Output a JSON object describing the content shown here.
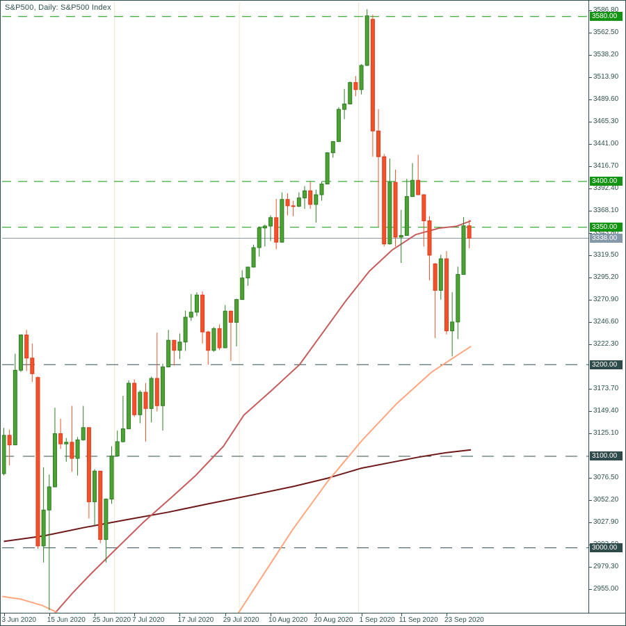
{
  "window": {
    "title": "S&P500, Daily: S&P500 Index"
  },
  "colors": {
    "text": "#2f4f4f",
    "up_fill": "#4ea234",
    "up_edge": "#2e7d24",
    "down_fill": "#f2512a",
    "down_edge": "#dd3d1d",
    "green_line": "#0a970a",
    "dark_line": "#2f4f4f",
    "bid_line": "#8699ab",
    "bid_label_bg": "#8699ab",
    "green_label_bg": "#129412",
    "dark_label_bg": "#2e4a4a",
    "ma_dark_red": "#6f1818",
    "ma_rose": "#c45c5c",
    "ma_salmon": "#ffa67e",
    "month_separator": "#f0e4cc"
  },
  "price_axis": {
    "ticks": [
      3586.8,
      3562.5,
      3538.2,
      3513.9,
      3489.6,
      3465.3,
      3441.0,
      3416.7,
      3392.4,
      3368.1,
      3343.8,
      3319.5,
      3295.2,
      3270.9,
      3246.6,
      3222.3,
      3173.7,
      3149.4,
      3125.1,
      3076.5,
      3052.2,
      3027.9,
      3003.6,
      2979.3,
      2955.0
    ]
  },
  "time_axis": {
    "labels": [
      {
        "text": "3 Jun 2020",
        "i": 0
      },
      {
        "text": "15 Jun 2020",
        "i": 8
      },
      {
        "text": "25 Jun 2020",
        "i": 16
      },
      {
        "text": "7 Jul 2020",
        "i": 23
      },
      {
        "text": "17 Jul 2020",
        "i": 31
      },
      {
        "text": "29 Jul 2020",
        "i": 39
      },
      {
        "text": "10 Aug 2020",
        "i": 47
      },
      {
        "text": "20 Aug 2020",
        "i": 55
      },
      {
        "text": "1 Sep 2020",
        "i": 63
      },
      {
        "text": "11 Sep 2020",
        "i": 70
      },
      {
        "text": "23 Sep 2020",
        "i": 78
      }
    ]
  },
  "chart_data": {
    "type": "candlestick",
    "title": "S&P500, Daily: S&P500 Index",
    "symbol": "S&P500",
    "timeframe": "Daily",
    "current_bid": 3338.0,
    "y_axis_range": [
      2922,
      3591
    ],
    "x_range_dates": [
      "3 Jun 2020",
      "29 Sep 2020"
    ],
    "grid": "off",
    "levels": [
      {
        "price": 3580,
        "label": "3580.00",
        "style": "green-dash"
      },
      {
        "price": 3400,
        "label": "3400.00",
        "style": "green-dash"
      },
      {
        "price": 3350,
        "label": "3350.00",
        "style": "green-dash"
      },
      {
        "price": 3338,
        "label": "3338.00",
        "style": "bid"
      },
      {
        "price": 3200,
        "label": "3200.00",
        "style": "dark-dash"
      },
      {
        "price": 3100,
        "label": "3100.00",
        "style": "dark-dash"
      },
      {
        "price": 3000,
        "label": "3000.00",
        "style": "dark-dash"
      }
    ],
    "month_separators_i": [
      19.5,
      41.5,
      62.5
    ],
    "candles_ohlc": [
      [
        3081.0,
        3131,
        3079,
        3122.9
      ],
      [
        3122.9,
        3129,
        3090,
        3112.4
      ],
      [
        3112.4,
        3212,
        3112,
        3193.9
      ],
      [
        3193.9,
        3233,
        3192,
        3232.4
      ],
      [
        3232.4,
        3238,
        3193,
        3207.2
      ],
      [
        3207.2,
        3223,
        3181,
        3190.1
      ],
      [
        3186.0,
        3187,
        2999,
        3002.1
      ],
      [
        3002.1,
        3088,
        2984,
        3041.3
      ],
      [
        3041.3,
        3080,
        2932,
        3066.6
      ],
      [
        3066.6,
        3153,
        3066,
        3124.7
      ],
      [
        3124.7,
        3141,
        3108,
        3113.5
      ],
      [
        3113.5,
        3120,
        3094,
        3115.3
      ],
      [
        3115.3,
        3155,
        3083,
        3097.7
      ],
      [
        3097.7,
        3121,
        3079,
        3117.9
      ],
      [
        3117.9,
        3155,
        3117,
        3131.3
      ],
      [
        3131.3,
        3132,
        3032,
        3050.3
      ],
      [
        3050.3,
        3086,
        3024,
        3083.8
      ],
      [
        3083.8,
        3084,
        3005,
        3009.1
      ],
      [
        3009.1,
        3054,
        2984,
        3053.2
      ],
      [
        3053.2,
        3111,
        3048,
        3100.3
      ],
      [
        3100.3,
        3128,
        3100,
        3115.9
      ],
      [
        3115.9,
        3166,
        3115,
        3130.0
      ],
      [
        3130.0,
        3183,
        3130,
        3179.7
      ],
      [
        3179.7,
        3184,
        3143,
        3145.3
      ],
      [
        3145.3,
        3172,
        3136,
        3169.9
      ],
      [
        3169.9,
        3180,
        3116,
        3152.1
      ],
      [
        3152.1,
        3187,
        3137,
        3185.0
      ],
      [
        3185.0,
        3235,
        3149,
        3155.2
      ],
      [
        3155.2,
        3201,
        3128,
        3197.5
      ],
      [
        3197.5,
        3238,
        3197,
        3226.6
      ],
      [
        3226.6,
        3227,
        3199,
        3215.6
      ],
      [
        3215.6,
        3234,
        3206,
        3224.7
      ],
      [
        3224.7,
        3259,
        3215,
        3251.8
      ],
      [
        3251.8,
        3277,
        3248,
        3257.3
      ],
      [
        3257.3,
        3279,
        3253,
        3276.0
      ],
      [
        3276.0,
        3280,
        3223,
        3235.7
      ],
      [
        3235.7,
        3237,
        3200,
        3215.6
      ],
      [
        3215.6,
        3241,
        3214,
        3239.4
      ],
      [
        3239.4,
        3244,
        3216,
        3218.4
      ],
      [
        3218.4,
        3265,
        3218,
        3258.4
      ],
      [
        3258.4,
        3259,
        3204,
        3246.2
      ],
      [
        3246.2,
        3272,
        3220,
        3271.1
      ],
      [
        3271.1,
        3303,
        3271,
        3294.6
      ],
      [
        3294.6,
        3307,
        3286,
        3306.5
      ],
      [
        3306.5,
        3331,
        3306,
        3327.8
      ],
      [
        3327.8,
        3351,
        3318,
        3349.2
      ],
      [
        3349.2,
        3353,
        3329,
        3351.3
      ],
      [
        3351.3,
        3363,
        3335,
        3360.5
      ],
      [
        3360.5,
        3381,
        3326,
        3333.7
      ],
      [
        3333.7,
        3388,
        3333,
        3380.4
      ],
      [
        3380.4,
        3387,
        3363,
        3373.4
      ],
      [
        3373.4,
        3379,
        3362,
        3372.9
      ],
      [
        3372.9,
        3388,
        3372,
        3382.0
      ],
      [
        3382.0,
        3395,
        3370,
        3389.8
      ],
      [
        3389.8,
        3400,
        3370,
        3374.9
      ],
      [
        3374.9,
        3391,
        3355,
        3385.5
      ],
      [
        3385.5,
        3400,
        3379,
        3397.2
      ],
      [
        3397.2,
        3432,
        3397,
        3431.3
      ],
      [
        3431.3,
        3444,
        3426,
        3443.6
      ],
      [
        3443.6,
        3481,
        3443,
        3478.7
      ],
      [
        3478.7,
        3501,
        3468,
        3484.6
      ],
      [
        3484.6,
        3509,
        3484,
        3508.0
      ],
      [
        3508.0,
        3515,
        3493,
        3500.3
      ],
      [
        3500.3,
        3528,
        3495,
        3526.7
      ],
      [
        3526.7,
        3588,
        3526,
        3580.8
      ],
      [
        3577.0,
        3582,
        3427,
        3455.1
      ],
      [
        3455.1,
        3479,
        3350,
        3427.0
      ],
      [
        3427.0,
        3430,
        3329,
        3331.8
      ],
      [
        3331.8,
        3425,
        3331,
        3399.0
      ],
      [
        3399.0,
        3413,
        3329,
        3339.2
      ],
      [
        3339.2,
        3369,
        3311,
        3341.0
      ],
      [
        3341.0,
        3403,
        3341,
        3383.5
      ],
      [
        3383.5,
        3420,
        3383,
        3401.2
      ],
      [
        3401.2,
        3429,
        3385,
        3385.5
      ],
      [
        3385.5,
        3386,
        3329,
        3357.0
      ],
      [
        3357.0,
        3362,
        3292,
        3319.5
      ],
      [
        3310.0,
        3311,
        3229,
        3281.1
      ],
      [
        3281.1,
        3320,
        3271,
        3315.6
      ],
      [
        3315.6,
        3324,
        3233,
        3236.9
      ],
      [
        3236.9,
        3279,
        3209,
        3246.6
      ],
      [
        3246.6,
        3307,
        3228,
        3298.5
      ],
      [
        3298.5,
        3361,
        3298,
        3351.6
      ],
      [
        3351.6,
        3358,
        3327,
        3338.0
      ]
    ],
    "series": [
      {
        "name": "ma-dark-red",
        "points": [
          [
            0,
            3007
          ],
          [
            7,
            3013
          ],
          [
            14,
            3022
          ],
          [
            21,
            3030
          ],
          [
            29,
            3039
          ],
          [
            36,
            3048
          ],
          [
            44,
            3058
          ],
          [
            51,
            3067
          ],
          [
            57,
            3076
          ],
          [
            63,
            3087
          ],
          [
            68,
            3093
          ],
          [
            73,
            3099
          ],
          [
            78,
            3104
          ],
          [
            82.3,
            3107
          ]
        ]
      },
      {
        "name": "ma-rose",
        "points": [
          [
            8.9,
            2928
          ],
          [
            12.3,
            2952
          ],
          [
            15.4,
            2972
          ],
          [
            19,
            2994
          ],
          [
            24.6,
            3028
          ],
          [
            29.7,
            3056
          ],
          [
            33.8,
            3079
          ],
          [
            38.7,
            3111
          ],
          [
            42.3,
            3145
          ],
          [
            47.2,
            3172
          ],
          [
            52.1,
            3200
          ],
          [
            56.2,
            3235
          ],
          [
            60.3,
            3270
          ],
          [
            64.4,
            3302
          ],
          [
            68.4,
            3325
          ],
          [
            72.6,
            3342
          ],
          [
            76.7,
            3349
          ],
          [
            79.7,
            3351
          ],
          [
            82.3,
            3357
          ]
        ]
      },
      {
        "name": "ma-salmon-left",
        "points": [
          [
            -0.3,
            2947
          ],
          [
            3,
            2944
          ],
          [
            6.8,
            2937
          ],
          [
            8.9,
            2931
          ],
          [
            11.2,
            2921
          ]
        ]
      },
      {
        "name": "ma-salmon",
        "points": [
          [
            40.5,
            2921
          ],
          [
            44.8,
            2962
          ],
          [
            50.9,
            3020
          ],
          [
            57,
            3072
          ],
          [
            63.2,
            3118
          ],
          [
            69.3,
            3158
          ],
          [
            75.4,
            3192
          ],
          [
            82.3,
            3220
          ]
        ]
      }
    ]
  }
}
